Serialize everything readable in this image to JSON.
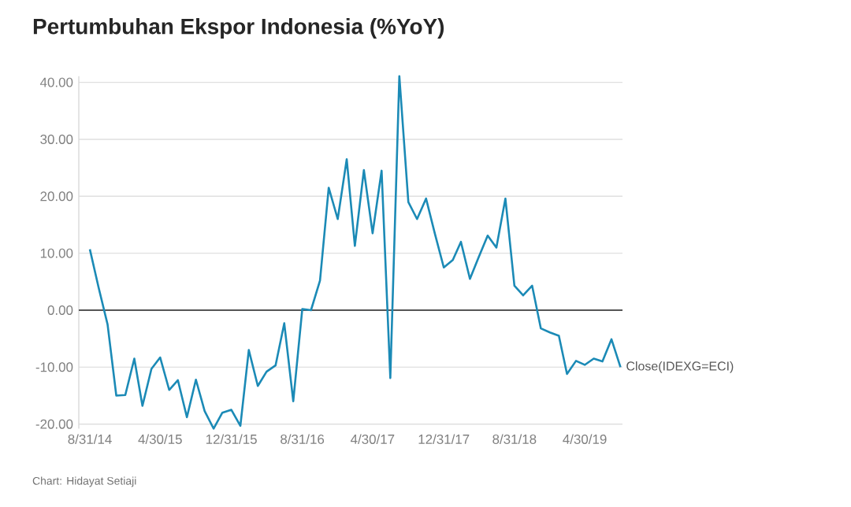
{
  "chart_data": {
    "type": "line",
    "title": "Pertumbuhan Ekspor Indonesia (%YoY)",
    "annotations": [
      "Chart: Hidayat Setiaji"
    ],
    "x": [
      "2014-08-31",
      "2014-09-30",
      "2014-10-31",
      "2014-11-30",
      "2014-12-31",
      "2015-01-31",
      "2015-02-28",
      "2015-03-31",
      "2015-04-30",
      "2015-05-31",
      "2015-06-30",
      "2015-07-31",
      "2015-08-31",
      "2015-09-30",
      "2015-10-31",
      "2015-11-30",
      "2015-12-31",
      "2016-01-31",
      "2016-02-29",
      "2016-03-31",
      "2016-04-30",
      "2016-05-31",
      "2016-06-30",
      "2016-07-31",
      "2016-08-31",
      "2016-09-30",
      "2016-10-31",
      "2016-11-30",
      "2016-12-31",
      "2017-01-31",
      "2017-02-28",
      "2017-03-31",
      "2017-04-30",
      "2017-05-31",
      "2017-06-30",
      "2017-07-31",
      "2017-08-31",
      "2017-09-30",
      "2017-10-31",
      "2017-11-30",
      "2017-12-31",
      "2018-01-31",
      "2018-02-28",
      "2018-03-31",
      "2018-04-30",
      "2018-05-31",
      "2018-06-30",
      "2018-07-31",
      "2018-08-31",
      "2018-09-30",
      "2018-10-31",
      "2018-11-30",
      "2018-12-31",
      "2019-01-31",
      "2019-02-28",
      "2019-03-31",
      "2019-04-30",
      "2019-05-31",
      "2019-06-30",
      "2019-07-31",
      "2019-08-31"
    ],
    "series": [
      {
        "name": "Close(IDEXG=ECI)",
        "color": "#1b8ab6",
        "values": [
          10.7,
          4.0,
          -2.5,
          -15,
          -14.9,
          -8.5,
          -16.8,
          -10.3,
          -8.3,
          -14,
          -12.3,
          -18.8,
          -12.2,
          -17.7,
          -20.8,
          -18,
          -17.5,
          -20.3,
          -7,
          -13.3,
          -10.8,
          -9.7,
          -2.3,
          -16,
          0.2,
          0,
          5.2,
          21.5,
          16,
          26.5,
          11.3,
          24.6,
          13.5,
          24.5,
          -11.9,
          41.1,
          19,
          16,
          19.6,
          13.5,
          7.5,
          8.8,
          12,
          5.5,
          9.3,
          13.1,
          11,
          19.6,
          4.3,
          2.6,
          4.3,
          -3.2,
          -3.9,
          -4.5,
          -11.2,
          -8.9,
          -9.6,
          -8.5,
          -9,
          -5.1,
          -10
        ]
      }
    ],
    "xlim": [
      "2014-07-24",
      "2019-09-07"
    ],
    "xticks": [
      {
        "value": "2014-08-31",
        "label": "8/31/14"
      },
      {
        "value": "2015-04-30",
        "label": "4/30/15"
      },
      {
        "value": "2015-12-31",
        "label": "12/31/15"
      },
      {
        "value": "2016-08-31",
        "label": "8/31/16"
      },
      {
        "value": "2017-04-30",
        "label": "4/30/17"
      },
      {
        "value": "2017-12-31",
        "label": "12/31/17"
      },
      {
        "value": "2018-08-31",
        "label": "8/31/18"
      },
      {
        "value": "2019-04-30",
        "label": "4/30/19"
      }
    ],
    "ylim": [
      -20.8,
      41.1
    ],
    "yticks": [
      {
        "value": -20,
        "label": "-20.00"
      },
      {
        "value": -10,
        "label": "-10.00"
      },
      {
        "value": 0,
        "label": "0.00"
      },
      {
        "value": 10,
        "label": "10.00"
      },
      {
        "value": 20,
        "label": "20.00"
      },
      {
        "value": 30,
        "label": "30.00"
      },
      {
        "value": 40,
        "label": "40.00"
      }
    ],
    "ref_lines": [
      {
        "axis": "y",
        "value": 0,
        "color": "#555555"
      }
    ],
    "grid": "y"
  }
}
